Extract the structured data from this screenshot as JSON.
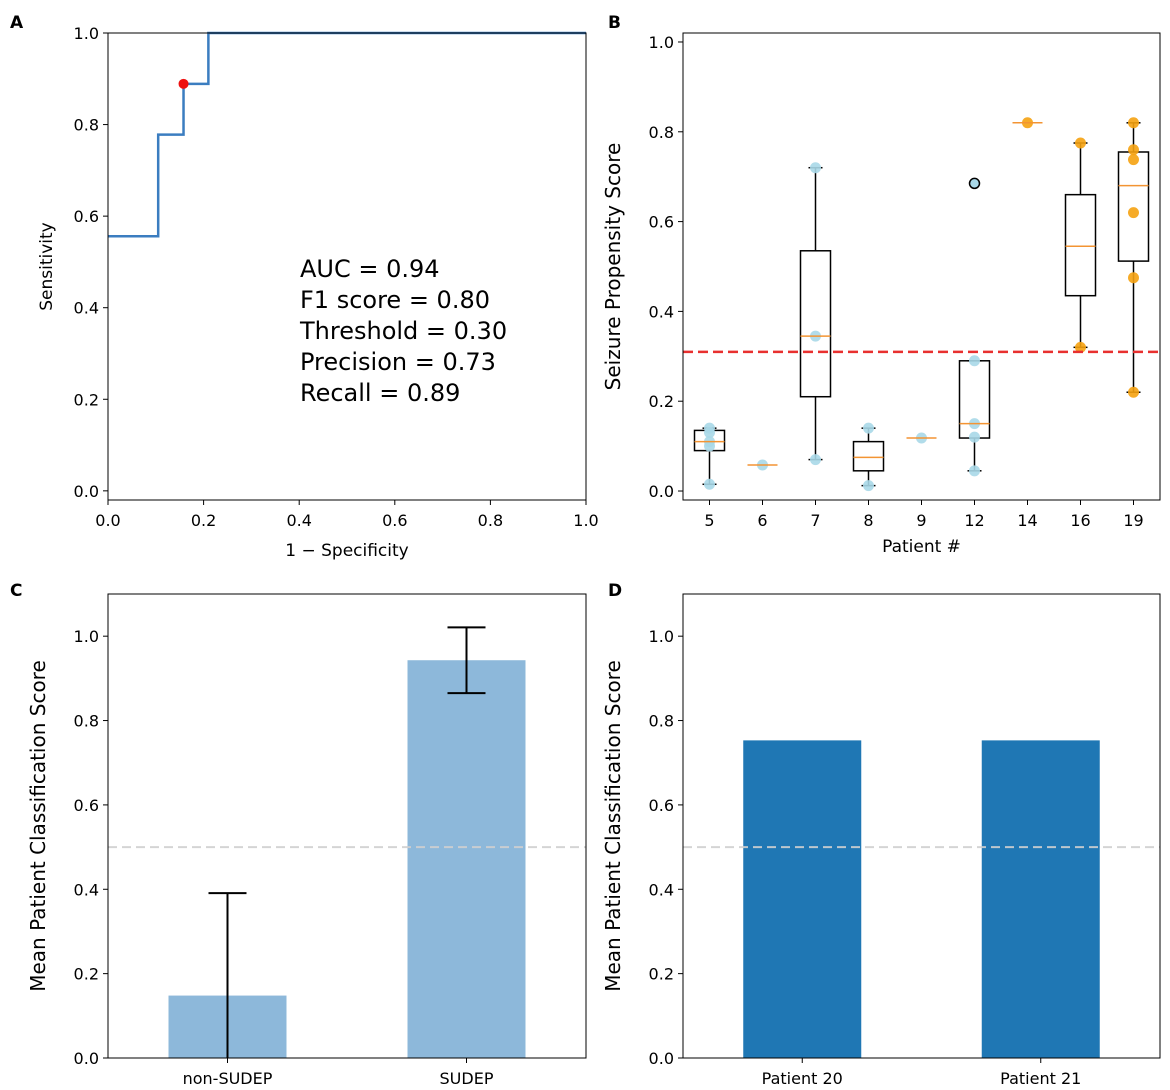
{
  "chart_data": [
    {
      "panel": "A",
      "type": "line",
      "xlabel": "1 − Specificity",
      "ylabel": "Sensitivity",
      "xlim": [
        0.0,
        1.0
      ],
      "ylim": [
        -0.02,
        1.0
      ],
      "xticks": [
        "0.0",
        "0.2",
        "0.4",
        "0.6",
        "0.8",
        "1.0"
      ],
      "yticks": [
        "0.0",
        "0.2",
        "0.4",
        "0.6",
        "0.8",
        "1.0"
      ],
      "series": [
        {
          "name": "ROC",
          "color": "#3b7dc0",
          "x": [
            0.0,
            0.105,
            0.105,
            0.158,
            0.158,
            0.21,
            0.21,
            1.0
          ],
          "y": [
            0.556,
            0.556,
            0.778,
            0.778,
            0.889,
            0.889,
            1.0,
            1.0
          ]
        }
      ],
      "point": {
        "x": 0.158,
        "y": 0.889,
        "color": "#ee1111"
      },
      "annotations": [
        "AUC = 0.94",
        "F1 score = 0.80",
        "Threshold = 0.30",
        "Precision = 0.73",
        "Recall = 0.89"
      ]
    },
    {
      "panel": "B",
      "type": "box",
      "xlabel": "Patient #",
      "ylabel": "Seizure Propensity Score",
      "ylim": [
        -0.02,
        1.02
      ],
      "yticks": [
        "0.0",
        "0.2",
        "0.4",
        "0.6",
        "0.8",
        "1.0"
      ],
      "categories": [
        "5",
        "6",
        "7",
        "8",
        "9",
        "12",
        "14",
        "16",
        "19"
      ],
      "threshold": 0.31,
      "threshold_color": "#e8302f",
      "boxes": [
        {
          "q1": 0.09,
          "median": 0.11,
          "q3": 0.135,
          "whisker_low": 0.015,
          "whisker_high": 0.14,
          "points": [
            0.015,
            0.1,
            0.11,
            0.13,
            0.14
          ],
          "color": "#a9d8e8"
        },
        {
          "median": 0.058,
          "points": [
            0.058
          ],
          "color": "#a9d8e8"
        },
        {
          "q1": 0.21,
          "median": 0.345,
          "q3": 0.535,
          "whisker_low": 0.07,
          "whisker_high": 0.72,
          "points": [
            0.07,
            0.345,
            0.72
          ],
          "color": "#a9d8e8"
        },
        {
          "q1": 0.045,
          "median": 0.075,
          "q3": 0.11,
          "whisker_low": 0.012,
          "whisker_high": 0.14,
          "points": [
            0.012,
            0.14
          ],
          "color": "#a9d8e8"
        },
        {
          "median": 0.118,
          "points": [
            0.118
          ],
          "color": "#a9d8e8"
        },
        {
          "q1": 0.118,
          "median": 0.15,
          "q3": 0.29,
          "whisker_low": 0.045,
          "whisker_high": 0.29,
          "points": [
            0.045,
            0.12,
            0.15,
            0.29
          ],
          "outlier": 0.685,
          "color": "#a9d8e8"
        },
        {
          "median": 0.82,
          "points": [
            0.82
          ],
          "color": "#f5a211"
        },
        {
          "q1": 0.435,
          "median": 0.545,
          "q3": 0.66,
          "whisker_low": 0.32,
          "whisker_high": 0.775,
          "points": [
            0.32,
            0.775
          ],
          "color": "#f5a211"
        },
        {
          "q1": 0.512,
          "median": 0.68,
          "q3": 0.755,
          "whisker_low": 0.22,
          "whisker_high": 0.82,
          "points": [
            0.22,
            0.475,
            0.62,
            0.738,
            0.76,
            0.82
          ],
          "color": "#f5a211"
        }
      ]
    },
    {
      "panel": "C",
      "type": "bar",
      "ylabel": "Mean Patient Classification Score",
      "ylim": [
        0.0,
        1.1
      ],
      "yticks": [
        "0.0",
        "0.2",
        "0.4",
        "0.6",
        "0.8",
        "1.0"
      ],
      "categories": [
        "non-SUDEP",
        "SUDEP"
      ],
      "values": [
        0.148,
        0.943
      ],
      "errors": [
        0.243,
        0.078
      ],
      "bar_color": "#8db8da",
      "reference_line": 0.5
    },
    {
      "panel": "D",
      "type": "bar",
      "ylabel": "Mean Patient Classification Score",
      "ylim": [
        0.0,
        1.1
      ],
      "yticks": [
        "0.0",
        "0.2",
        "0.4",
        "0.6",
        "0.8",
        "1.0"
      ],
      "categories": [
        "Patient 20",
        "Patient 21"
      ],
      "values": [
        0.753,
        0.753
      ],
      "bar_color": "#1f77b4",
      "reference_line": 0.5
    }
  ]
}
